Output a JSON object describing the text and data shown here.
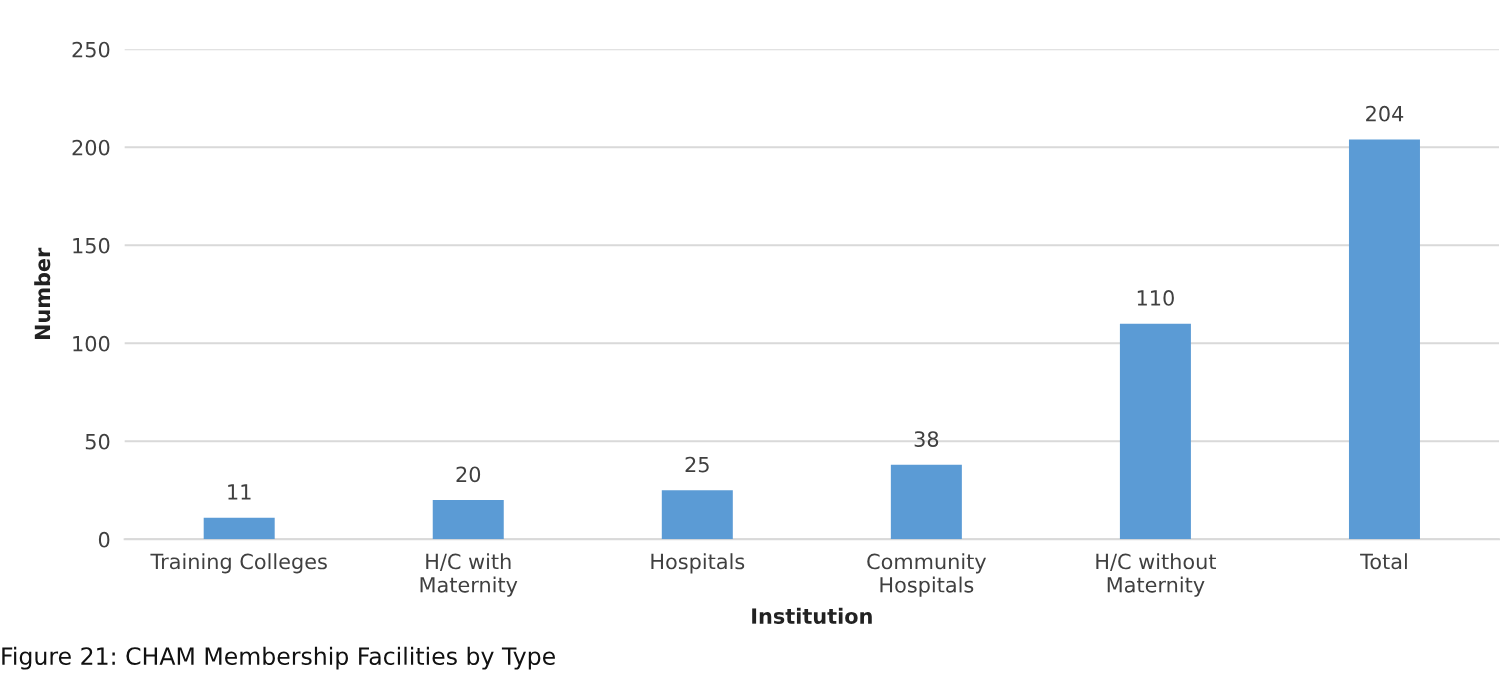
{
  "chart_data": {
    "type": "bar",
    "xlabel": "Institution",
    "ylabel": "Number",
    "categories": [
      "Training Colleges",
      "H/C with\nMaternity",
      "Hospitals",
      "Community\nHospitals",
      "H/C without\nMaternity",
      "Total"
    ],
    "values": [
      11,
      20,
      25,
      38,
      110,
      204
    ],
    "color": "#5b9bd5",
    "ylim": [
      0,
      250
    ],
    "yticks": [
      0,
      50,
      100,
      150,
      200,
      250
    ],
    "grid": "y",
    "data_labels": true,
    "annotations": [
      "Figure 21: CHAM Membership Facilities by Type"
    ]
  }
}
